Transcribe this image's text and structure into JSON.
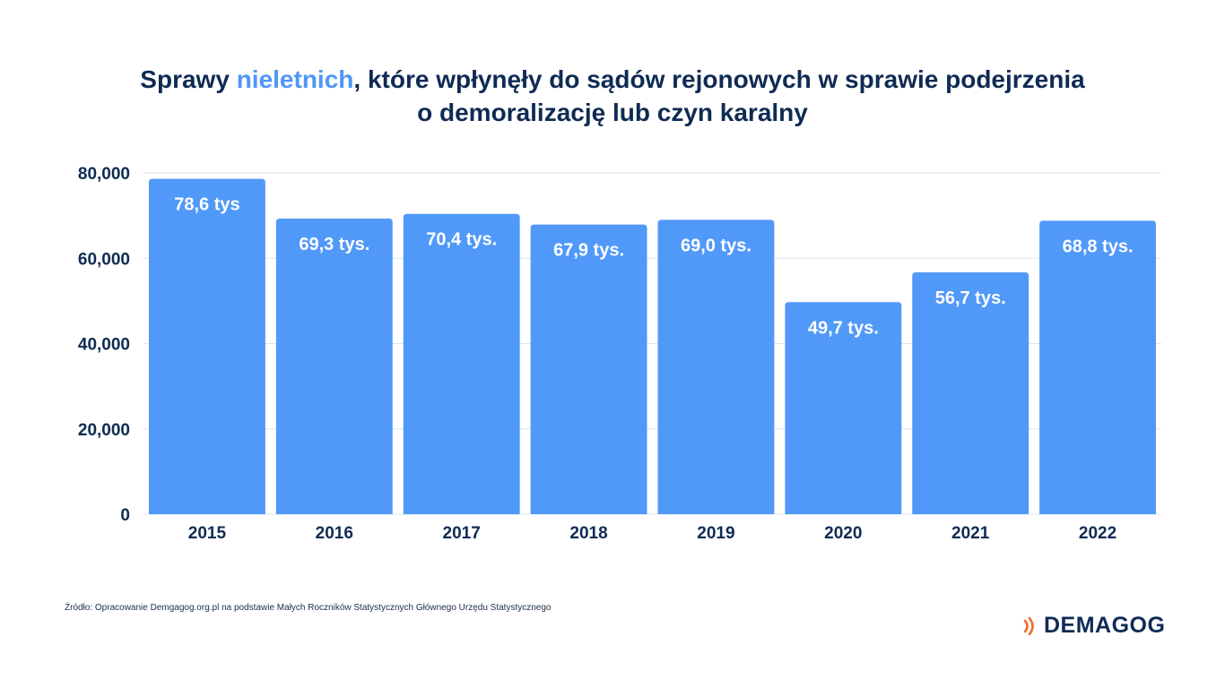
{
  "title": {
    "part1": "Sprawy ",
    "highlight": "nieletnich",
    "part2": ", które wpłynęły do sądów rejonowych w sprawie podejrzenia",
    "line2": "o demoralizację lub czyn karalny"
  },
  "colors": {
    "bar": "#5199f8",
    "text": "#0f2b54",
    "accent": "#4f96f6",
    "grid": "#dde6f2",
    "logo_accent": "#f26b2b"
  },
  "chart_data": {
    "type": "bar",
    "categories": [
      "2015",
      "2016",
      "2017",
      "2018",
      "2019",
      "2020",
      "2021",
      "2022"
    ],
    "values": [
      78600,
      69300,
      70400,
      67900,
      69000,
      49700,
      56700,
      68800
    ],
    "data_labels": [
      "78,6 tys",
      "69,3 tys.",
      "70,4 tys.",
      "67,9 tys.",
      "69,0 tys.",
      "49,7 tys.",
      "56,7 tys.",
      "68,8 tys."
    ],
    "yticks": [
      0,
      20000,
      40000,
      60000,
      80000
    ],
    "ytick_labels": [
      "0",
      "20,000",
      "40,000",
      "60,000",
      "80,000"
    ],
    "ylim": [
      0,
      80000
    ],
    "grid": true,
    "legend": "none"
  },
  "source": "Źródło: Opracowanie Demgagog.org.pl na podstawie Małych Roczników Statystycznych Głównego Urzędu Statystycznego",
  "logo": {
    "text": "DEMAGOG",
    "icon": "sound-waves-icon"
  }
}
